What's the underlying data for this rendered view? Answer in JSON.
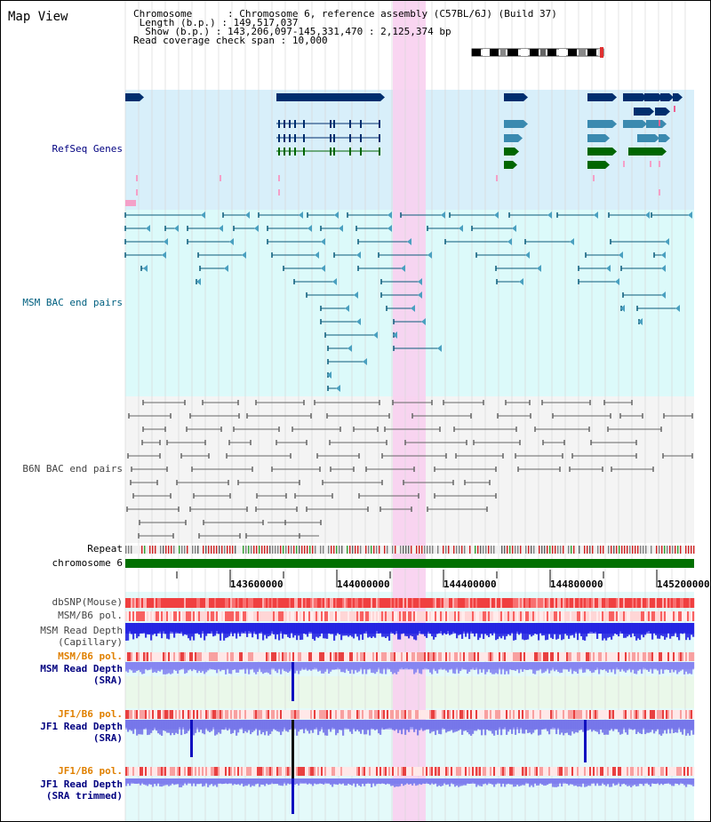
{
  "app": {
    "title": "Map View"
  },
  "info": {
    "chromosome_label": "Chromosome",
    "chromosome_value": "Chromosome 6, reference assembly (C57BL/6J) (Build 37)",
    "length_label": "Length (b.p.)",
    "length_value": "149,517,037",
    "show_label": "Show (b.p.)",
    "show_value": "143,206,097-145,331,470 : 2,125,374 bp",
    "span_label": "Read coverage check span",
    "span_value": "10,000"
  },
  "tracks": {
    "refseq": "RefSeq Genes",
    "msm_bac": "MSM BAC end pairs",
    "b6n_bac": "B6N BAC end pairs",
    "repeat": "Repeat",
    "chromosome": "chromosome 6",
    "dbsnp": "dbSNP(Mouse)",
    "msm_b6_pol": "MSM/B6 pol.",
    "msm_depth_cap_1": "MSM Read Depth",
    "msm_depth_cap_2": "(Capillary)",
    "msm_b6_pol_2": "MSM/B6 pol.",
    "msm_depth_sra_1": "MSM Read Depth",
    "msm_depth_sra_2": "(SRA)",
    "jf1_b6_pol": "JF1/B6 pol.",
    "jf1_depth_sra_1": "JF1 Read Depth",
    "jf1_depth_sra_2": "(SRA)",
    "jf1_b6_pol_2": "JF1/B6 pol.",
    "jf1_depth_trim_1": "JF1 Read Depth",
    "jf1_depth_trim_2": "(SRA trimmed)"
  },
  "scale": {
    "ticks": [
      "143600000",
      "144000000",
      "144400000",
      "144800000",
      "145200000"
    ]
  },
  "colors": {
    "refseq_bg": "#d8effa",
    "msm_bg": "#dcfafa",
    "b6n_bg": "#f4f4f4",
    "highlight": "#f8d0f0",
    "chromosome_bar": "#007000",
    "gene_dark": "#002e6e",
    "gene_mid": "#3a8ab0",
    "gene_green": "#006600",
    "msm_line": "#0a5a7a",
    "b6n_line": "#666666",
    "label_navy": "#000080",
    "label_teal": "#006080",
    "label_orange": "#e08000",
    "label_gray": "#444444"
  }
}
